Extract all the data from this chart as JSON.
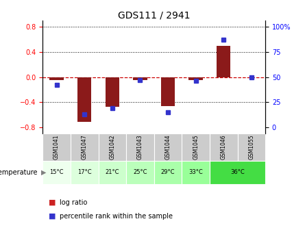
{
  "title": "GDS111 / 2941",
  "samples": [
    "GSM1041",
    "GSM1047",
    "GSM1042",
    "GSM1043",
    "GSM1044",
    "GSM1045",
    "GSM1046",
    "GSM1055"
  ],
  "temperatures": [
    "15°C",
    "17°C",
    "21°C",
    "25°C",
    "29°C",
    "33°C",
    "36°C",
    "36°C"
  ],
  "log_ratio": [
    -0.05,
    -0.72,
    -0.47,
    -0.05,
    -0.46,
    -0.05,
    0.5,
    0.0
  ],
  "percentile": [
    42,
    13,
    19,
    47,
    15,
    46,
    87,
    50
  ],
  "ylim_left": [
    -0.9,
    0.9
  ],
  "yticks_left": [
    -0.8,
    -0.4,
    0.0,
    0.4,
    0.8
  ],
  "yticks_right": [
    0,
    25,
    50,
    75,
    100
  ],
  "bar_color": "#8b1a1a",
  "dot_color": "#3333cc",
  "zero_line_color": "#cc0000",
  "sample_bg_color": "#cccccc",
  "temp_colors": [
    "#eeffee",
    "#ddffdd",
    "#ccffcc",
    "#bbffbb",
    "#aaffaa",
    "#99ff99",
    "#44dd44"
  ],
  "legend_log_ratio_color": "#cc2222",
  "legend_percentile_color": "#3333cc",
  "title_fontsize": 10,
  "tick_fontsize": 7,
  "temperature_label": "temperature"
}
